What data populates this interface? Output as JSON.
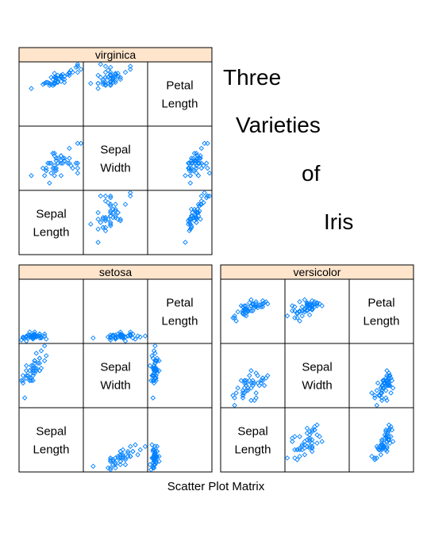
{
  "chart_data": {
    "type": "scatter",
    "title_lines": [
      "Three",
      "Varieties",
      "of",
      "Iris"
    ],
    "caption": "Scatter Plot Matrix",
    "variables": [
      "Sepal Length",
      "Sepal Width",
      "Petal Length"
    ],
    "diagonal_labels": [
      [
        "Sepal",
        "Length"
      ],
      [
        "Sepal",
        "Width"
      ],
      [
        "Petal",
        "Length"
      ]
    ],
    "strip_color": "#ffe5cc",
    "point_color": "#0080ff",
    "panels": [
      {
        "name": "virginica",
        "data": {
          "sepal_length": [
            6.3,
            5.8,
            7.1,
            6.3,
            6.5,
            7.6,
            4.9,
            7.3,
            6.7,
            7.2,
            6.5,
            6.4,
            6.8,
            5.7,
            5.8,
            6.4,
            6.5,
            7.7,
            7.7,
            6.0,
            6.9,
            5.6,
            7.7,
            6.3,
            6.7,
            7.2,
            6.2,
            6.1,
            6.4,
            7.2,
            7.4,
            7.9,
            6.4,
            6.3,
            6.1,
            7.7,
            6.3,
            6.4,
            6.0,
            6.9,
            6.7,
            6.9,
            5.8,
            6.8,
            6.7,
            6.7,
            6.3,
            6.5,
            6.2,
            5.9
          ],
          "sepal_width": [
            3.3,
            2.7,
            3.0,
            2.9,
            3.0,
            3.0,
            2.5,
            2.9,
            2.5,
            3.6,
            3.2,
            2.7,
            3.0,
            2.5,
            2.8,
            3.2,
            3.0,
            3.8,
            2.6,
            2.2,
            3.2,
            2.8,
            2.8,
            2.7,
            3.3,
            3.2,
            2.8,
            3.0,
            2.8,
            3.0,
            2.8,
            3.8,
            2.8,
            2.8,
            2.6,
            3.0,
            3.4,
            3.1,
            3.0,
            3.1,
            3.1,
            3.1,
            2.7,
            3.2,
            3.3,
            3.0,
            2.5,
            3.0,
            3.4,
            3.0
          ],
          "petal_length": [
            6.0,
            5.1,
            5.9,
            5.6,
            5.8,
            6.6,
            4.5,
            6.3,
            5.8,
            6.1,
            5.1,
            5.3,
            5.5,
            5.0,
            5.1,
            5.3,
            5.5,
            6.7,
            6.9,
            5.0,
            5.7,
            4.9,
            6.7,
            4.9,
            5.7,
            6.0,
            4.8,
            4.9,
            5.6,
            5.8,
            6.1,
            6.4,
            5.6,
            5.1,
            5.6,
            6.1,
            5.6,
            5.5,
            4.8,
            5.4,
            5.6,
            5.1,
            5.1,
            5.9,
            5.7,
            5.2,
            5.0,
            5.2,
            5.4,
            5.1
          ]
        }
      },
      {
        "name": "setosa",
        "data": {
          "sepal_length": [
            5.1,
            4.9,
            4.7,
            4.6,
            5.0,
            5.4,
            4.6,
            5.0,
            4.4,
            4.9,
            5.4,
            4.8,
            4.8,
            4.3,
            5.8,
            5.7,
            5.4,
            5.1,
            5.7,
            5.1,
            5.4,
            5.1,
            4.6,
            5.1,
            4.8,
            5.0,
            5.0,
            5.2,
            5.2,
            4.7,
            4.8,
            5.4,
            5.2,
            5.5,
            4.9,
            5.0,
            5.5,
            4.9,
            4.4,
            5.1,
            5.0,
            4.5,
            4.4,
            5.0,
            5.1,
            4.8,
            5.1,
            4.6,
            5.3,
            5.0
          ],
          "sepal_width": [
            3.5,
            3.0,
            3.2,
            3.1,
            3.6,
            3.9,
            3.4,
            3.4,
            2.9,
            3.1,
            3.7,
            3.4,
            3.0,
            3.0,
            4.0,
            4.4,
            3.9,
            3.5,
            3.8,
            3.8,
            3.4,
            3.7,
            3.6,
            3.3,
            3.4,
            3.0,
            3.4,
            3.5,
            3.4,
            3.2,
            3.1,
            3.4,
            4.1,
            4.2,
            3.1,
            3.2,
            3.5,
            3.6,
            3.0,
            3.4,
            3.5,
            2.3,
            3.2,
            3.5,
            3.8,
            3.0,
            3.8,
            3.2,
            3.7,
            3.3
          ],
          "petal_length": [
            1.4,
            1.4,
            1.3,
            1.5,
            1.4,
            1.7,
            1.4,
            1.5,
            1.4,
            1.5,
            1.5,
            1.6,
            1.4,
            1.1,
            1.2,
            1.5,
            1.3,
            1.4,
            1.7,
            1.5,
            1.7,
            1.5,
            1.0,
            1.7,
            1.9,
            1.6,
            1.6,
            1.5,
            1.4,
            1.6,
            1.6,
            1.5,
            1.5,
            1.4,
            1.5,
            1.2,
            1.3,
            1.4,
            1.3,
            1.5,
            1.3,
            1.3,
            1.3,
            1.6,
            1.9,
            1.4,
            1.6,
            1.4,
            1.5,
            1.4
          ]
        }
      },
      {
        "name": "versicolor",
        "data": {
          "sepal_length": [
            7.0,
            6.4,
            6.9,
            5.5,
            6.5,
            5.7,
            6.3,
            4.9,
            6.6,
            5.2,
            5.0,
            5.9,
            6.0,
            6.1,
            5.6,
            6.7,
            5.6,
            5.8,
            6.2,
            5.6,
            5.9,
            6.1,
            6.3,
            6.1,
            6.4,
            6.6,
            6.8,
            6.7,
            6.0,
            5.7,
            5.5,
            5.5,
            5.8,
            6.0,
            5.4,
            6.0,
            6.7,
            6.3,
            5.6,
            5.5,
            5.5,
            6.1,
            5.8,
            5.0,
            5.6,
            5.7,
            5.7,
            6.2,
            5.1,
            5.7
          ],
          "sepal_width": [
            3.2,
            3.2,
            3.1,
            2.3,
            2.8,
            2.8,
            3.3,
            2.4,
            2.9,
            2.7,
            2.0,
            3.0,
            2.2,
            2.9,
            2.9,
            3.1,
            3.0,
            2.7,
            2.2,
            2.5,
            3.2,
            2.8,
            2.5,
            2.8,
            2.9,
            3.0,
            2.8,
            3.0,
            2.9,
            2.6,
            2.4,
            2.4,
            2.7,
            2.7,
            3.0,
            3.4,
            3.1,
            2.3,
            3.0,
            2.5,
            2.6,
            3.0,
            2.6,
            2.3,
            2.7,
            3.0,
            2.9,
            2.9,
            2.5,
            2.8
          ],
          "petal_length": [
            4.7,
            4.5,
            4.9,
            4.0,
            4.6,
            4.5,
            4.7,
            3.3,
            4.6,
            3.9,
            3.5,
            4.2,
            4.0,
            4.7,
            3.6,
            4.4,
            4.5,
            4.1,
            4.5,
            3.9,
            4.8,
            4.0,
            4.9,
            4.7,
            4.3,
            4.4,
            4.8,
            5.0,
            4.5,
            3.5,
            3.8,
            3.7,
            3.9,
            5.1,
            4.5,
            4.5,
            4.7,
            4.4,
            4.1,
            4.0,
            4.4,
            4.6,
            4.0,
            3.3,
            4.2,
            4.2,
            4.2,
            4.3,
            3.0,
            4.1
          ]
        }
      }
    ],
    "legend": "none",
    "grid": false
  }
}
